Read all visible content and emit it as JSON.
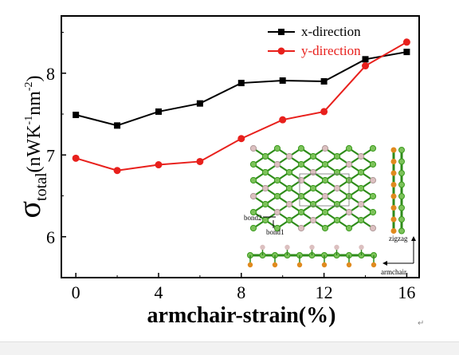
{
  "chart_data": {
    "type": "line",
    "xlabel": "armchair-strain(%)",
    "ylabel": {
      "symbol": "σ",
      "subscript": "total",
      "unit_pre": "(nWK",
      "sup1": "-1",
      "unit_mid": "nm",
      "sup2": "-2",
      "unit_post": ")"
    },
    "xlim": [
      -0.7,
      16.6
    ],
    "ylim": [
      5.5,
      8.7
    ],
    "x_ticks": [
      0,
      4,
      8,
      12,
      16
    ],
    "x_tick_labels": [
      "0",
      "4",
      "8",
      "12",
      "16"
    ],
    "y_ticks": [
      6,
      7,
      8
    ],
    "y_tick_labels": [
      "6",
      "7",
      "8"
    ],
    "legend_position": "top-right",
    "grid": false,
    "series": [
      {
        "name": "x-direction",
        "color": "#000000",
        "marker": "square",
        "x": [
          0,
          2,
          4,
          6,
          8,
          10,
          12,
          14,
          16
        ],
        "y": [
          7.49,
          7.36,
          7.53,
          7.63,
          7.88,
          7.91,
          7.9,
          8.17,
          8.26
        ]
      },
      {
        "name": "y-direction",
        "color": "#e8201c",
        "marker": "circle",
        "x": [
          0,
          2,
          4,
          6,
          8,
          10,
          12,
          14,
          16
        ],
        "y": [
          6.96,
          6.81,
          6.88,
          6.92,
          7.2,
          7.43,
          7.53,
          8.09,
          8.38
        ]
      }
    ]
  },
  "inset": {
    "labels": {
      "bond2": "bond2",
      "bond1": "bond1",
      "zigzag": "zigzag",
      "armchair": "armchair"
    },
    "colors": {
      "green": "#3a9a1e",
      "green_light": "#7cc25a",
      "pink": "#dcc0c0",
      "orange": "#e08a1e",
      "bond": "#2e8b1a"
    }
  },
  "page": {
    "return_mark": "↵"
  }
}
